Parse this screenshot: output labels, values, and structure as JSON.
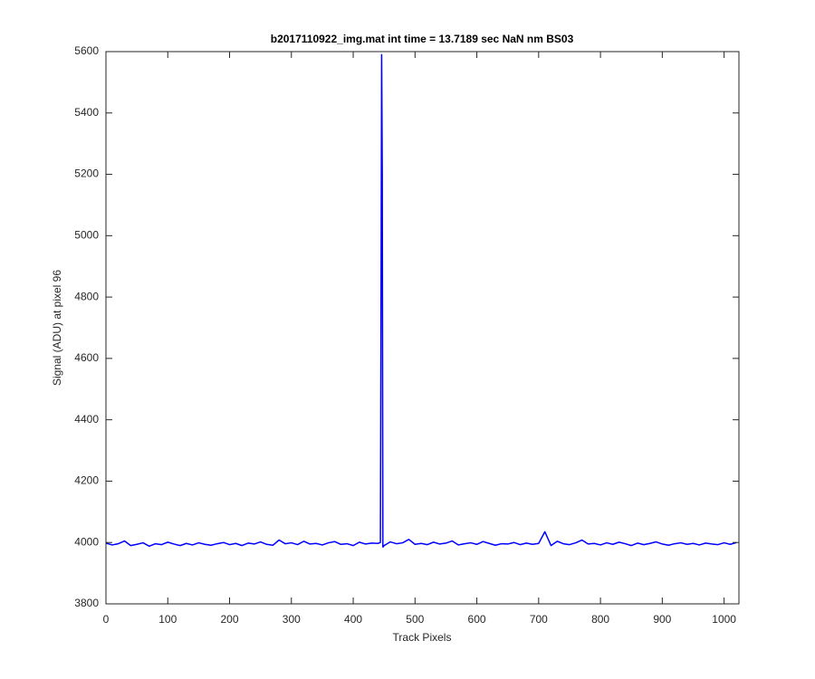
{
  "chart_data": {
    "type": "line",
    "title": "b2017110922_img.mat int time = 13.7189 sec  NaN nm BS03",
    "xlabel": "Track Pixels",
    "ylabel": "Signal (ADU) at pixel 96",
    "xlim": [
      0,
      1024
    ],
    "ylim": [
      3800,
      5600
    ],
    "xticks": [
      0,
      100,
      200,
      300,
      400,
      500,
      600,
      700,
      800,
      900,
      1000
    ],
    "yticks": [
      3800,
      4000,
      4200,
      4400,
      4600,
      4800,
      5000,
      5200,
      5400,
      5600
    ],
    "series": [
      {
        "color": "#0000ff",
        "x": [
          0,
          10,
          20,
          30,
          40,
          50,
          60,
          70,
          80,
          90,
          100,
          110,
          120,
          130,
          140,
          150,
          160,
          170,
          180,
          190,
          200,
          210,
          220,
          230,
          240,
          250,
          260,
          270,
          280,
          290,
          300,
          310,
          320,
          330,
          340,
          350,
          360,
          370,
          380,
          390,
          400,
          410,
          420,
          430,
          440,
          444,
          446,
          447,
          448,
          450,
          460,
          470,
          480,
          490,
          500,
          510,
          520,
          530,
          540,
          550,
          560,
          570,
          580,
          590,
          600,
          610,
          620,
          630,
          640,
          650,
          660,
          670,
          680,
          690,
          700,
          710,
          720,
          730,
          740,
          750,
          760,
          770,
          780,
          790,
          800,
          810,
          820,
          830,
          840,
          850,
          860,
          870,
          880,
          890,
          900,
          910,
          920,
          930,
          940,
          950,
          960,
          970,
          980,
          990,
          1000,
          1010,
          1020
        ],
        "values": [
          3998,
          3992,
          3996,
          4005,
          3990,
          3994,
          3999,
          3988,
          3996,
          3993,
          4001,
          3995,
          3990,
          3997,
          3992,
          3999,
          3994,
          3991,
          3996,
          4000,
          3993,
          3997,
          3990,
          3998,
          3995,
          4002,
          3994,
          3991,
          4008,
          3996,
          3999,
          3993,
          4004,
          3995,
          3997,
          3992,
          3999,
          4003,
          3994,
          3996,
          3990,
          4001,
          3995,
          3998,
          3997,
          4000,
          5590,
          5200,
          3985,
          3990,
          4002,
          3996,
          3999,
          4010,
          3994,
          3997,
          3993,
          4001,
          3995,
          3998,
          4005,
          3992,
          3996,
          3999,
          3994,
          4003,
          3997,
          3991,
          3996,
          3995,
          4000,
          3993,
          3998,
          3994,
          3997,
          4035,
          3990,
          4004,
          3996,
          3993,
          3999,
          4008,
          3995,
          3997,
          3992,
          3999,
          3994,
          4001,
          3996,
          3990,
          3998,
          3993,
          3997,
          4002,
          3995,
          3991,
          3996,
          3999,
          3994,
          3997,
          3992,
          3998,
          3995,
          3993,
          3999,
          3994,
          4000
        ]
      }
    ]
  }
}
